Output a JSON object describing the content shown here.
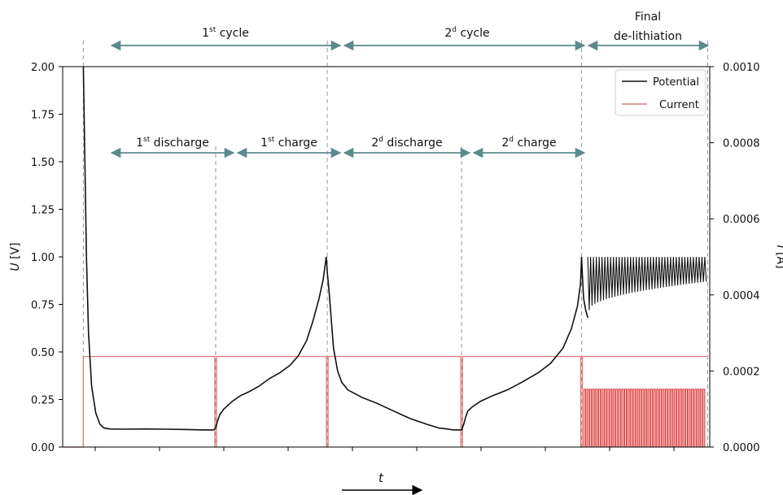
{
  "chart_data": {
    "type": "line",
    "xlabel": "t",
    "ylabel_left": {
      "main": "U",
      "unit": " [V]"
    },
    "ylabel_right": {
      "main": "I",
      "unit": " [A]"
    },
    "left_axis": {
      "ylim": [
        0,
        2.0
      ],
      "ticks": [
        "0.00",
        "0.25",
        "0.50",
        "0.75",
        "1.00",
        "1.25",
        "1.50",
        "1.75",
        "2.00"
      ]
    },
    "right_axis": {
      "ylim": [
        0,
        0.001
      ],
      "ticks": [
        "0.0000",
        "0.0002",
        "0.0004",
        "0.0006",
        "0.0008",
        "0.0010"
      ]
    },
    "legend": {
      "placement": "top-right",
      "items": [
        {
          "name": "Potential",
          "color": "#111111"
        },
        {
          "name": "Current",
          "color": "#e07b7b"
        }
      ]
    },
    "grid": false,
    "phases_top": [
      {
        "base": "1",
        "sup": "st",
        "text": " cycle"
      },
      {
        "base": "2",
        "sup": "d",
        "text": " cycle"
      },
      {
        "line1": "Final",
        "line2": "de-lithiation"
      }
    ],
    "phases_mid": [
      {
        "base": "1",
        "sup": "st",
        "text": " discharge"
      },
      {
        "base": "1",
        "sup": "st",
        "text": " charge"
      },
      {
        "base": "2",
        "sup": "d",
        "text": " discharge"
      },
      {
        "base": "2",
        "sup": "d",
        "text": " charge"
      }
    ],
    "boundaries_t": [
      0,
      64,
      118,
      183,
      241,
      302
    ],
    "t_range": [
      -10,
      303
    ],
    "current_level_A": 0.000238,
    "delithiation_pulse_A": 0.000152,
    "delithiation_pulse_count": 42,
    "series": [
      {
        "name": "Potential",
        "axis": "left",
        "color": "#111111",
        "points": [
          [
            0,
            2.0
          ],
          [
            0.6,
            1.6
          ],
          [
            1.5,
            1.0
          ],
          [
            2.5,
            0.6
          ],
          [
            4,
            0.32
          ],
          [
            6,
            0.18
          ],
          [
            8,
            0.12
          ],
          [
            10,
            0.1
          ],
          [
            13,
            0.095
          ],
          [
            20,
            0.094
          ],
          [
            30,
            0.095
          ],
          [
            40,
            0.094
          ],
          [
            50,
            0.092
          ],
          [
            58,
            0.09
          ],
          [
            63,
            0.09
          ],
          [
            64,
            0.1
          ],
          [
            65,
            0.14
          ],
          [
            66,
            0.17
          ],
          [
            68,
            0.2
          ],
          [
            72,
            0.24
          ],
          [
            76,
            0.27
          ],
          [
            80,
            0.29
          ],
          [
            85,
            0.32
          ],
          [
            90,
            0.36
          ],
          [
            95,
            0.39
          ],
          [
            100,
            0.43
          ],
          [
            104,
            0.48
          ],
          [
            108,
            0.56
          ],
          [
            111,
            0.66
          ],
          [
            114,
            0.78
          ],
          [
            116,
            0.88
          ],
          [
            117.5,
            1.0
          ],
          [
            118,
            0.92
          ],
          [
            119,
            0.8
          ],
          [
            120,
            0.66
          ],
          [
            121,
            0.52
          ],
          [
            123,
            0.4
          ],
          [
            125,
            0.34
          ],
          [
            128,
            0.3
          ],
          [
            135,
            0.26
          ],
          [
            142,
            0.23
          ],
          [
            150,
            0.19
          ],
          [
            158,
            0.15
          ],
          [
            166,
            0.12
          ],
          [
            172,
            0.1
          ],
          [
            176,
            0.095
          ],
          [
            179,
            0.09
          ],
          [
            183,
            0.09
          ],
          [
            184,
            0.12
          ],
          [
            185,
            0.16
          ],
          [
            186,
            0.19
          ],
          [
            188,
            0.21
          ],
          [
            192,
            0.24
          ],
          [
            198,
            0.27
          ],
          [
            205,
            0.3
          ],
          [
            212,
            0.34
          ],
          [
            220,
            0.39
          ],
          [
            226,
            0.44
          ],
          [
            232,
            0.52
          ],
          [
            236,
            0.62
          ],
          [
            239,
            0.74
          ],
          [
            240.5,
            0.86
          ],
          [
            241,
            1.0
          ],
          [
            241.5,
            0.88
          ],
          [
            242,
            0.78
          ],
          [
            243,
            0.72
          ],
          [
            244,
            0.68
          ]
        ]
      },
      {
        "name": "Potential",
        "axis": "left",
        "oscillation": {
          "t_start": 244,
          "t_end": 302,
          "count": 42,
          "upper": 1.0,
          "lower_start": 0.72,
          "lower_end": 0.87
        }
      }
    ]
  }
}
